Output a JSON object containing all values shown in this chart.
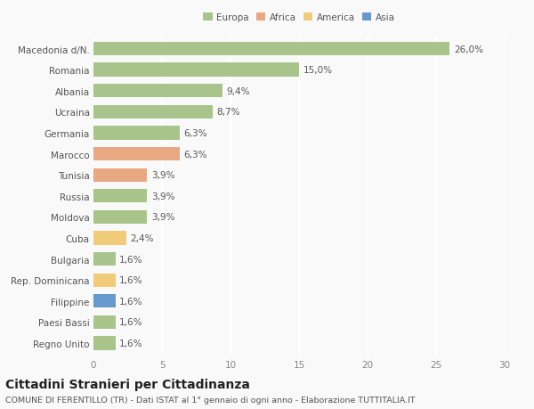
{
  "categories": [
    "Macedonia d/N.",
    "Romania",
    "Albania",
    "Ucraina",
    "Germania",
    "Marocco",
    "Tunisia",
    "Russia",
    "Moldova",
    "Cuba",
    "Bulgaria",
    "Rep. Dominicana",
    "Filippine",
    "Paesi Bassi",
    "Regno Unito"
  ],
  "values": [
    26.0,
    15.0,
    9.4,
    8.7,
    6.3,
    6.3,
    3.9,
    3.9,
    3.9,
    2.4,
    1.6,
    1.6,
    1.6,
    1.6,
    1.6
  ],
  "labels": [
    "26,0%",
    "15,0%",
    "9,4%",
    "8,7%",
    "6,3%",
    "6,3%",
    "3,9%",
    "3,9%",
    "3,9%",
    "2,4%",
    "1,6%",
    "1,6%",
    "1,6%",
    "1,6%",
    "1,6%"
  ],
  "continents": [
    "Europa",
    "Europa",
    "Europa",
    "Europa",
    "Europa",
    "Africa",
    "Africa",
    "Europa",
    "Europa",
    "America",
    "Europa",
    "America",
    "Asia",
    "Europa",
    "Europa"
  ],
  "continent_colors": {
    "Europa": "#a8c48a",
    "Africa": "#e8a882",
    "America": "#f0cc7a",
    "Asia": "#6699cc"
  },
  "legend_items": [
    "Europa",
    "Africa",
    "America",
    "Asia"
  ],
  "legend_colors": [
    "#a8c48a",
    "#e8a882",
    "#f0cc7a",
    "#6699cc"
  ],
  "xlim": [
    0,
    30
  ],
  "xticks": [
    0,
    5,
    10,
    15,
    20,
    25,
    30
  ],
  "title": "Cittadini Stranieri per Cittadinanza",
  "subtitle": "COMUNE DI FERENTILLO (TR) - Dati ISTAT al 1° gennaio di ogni anno - Elaborazione TUTTITALIA.IT",
  "background_color": "#f9f9f9",
  "grid_color": "#ffffff",
  "bar_height": 0.65,
  "label_fontsize": 7.5,
  "tick_fontsize": 7.5,
  "title_fontsize": 10,
  "subtitle_fontsize": 6.8
}
